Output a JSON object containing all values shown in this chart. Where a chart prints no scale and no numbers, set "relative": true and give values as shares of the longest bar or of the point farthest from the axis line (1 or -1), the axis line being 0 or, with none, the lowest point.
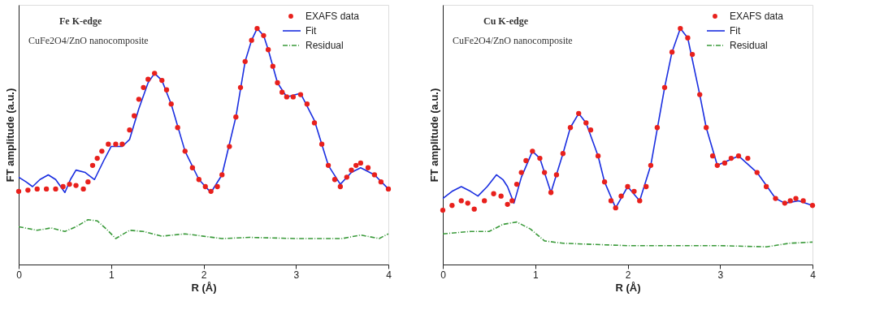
{
  "chart_data": [
    {
      "type": "scatter",
      "relative": true,
      "xlabel": "R (Å)",
      "ylabel": "FT amplitude (a.u.)",
      "xlim": [
        0,
        4
      ],
      "xticks": [
        0,
        1,
        2,
        3,
        4
      ],
      "tick_labels": "x",
      "legend": "top right",
      "grid": false,
      "annotations": [
        "Fe K-edge",
        "CuFe2O4/ZnO nanocomposite"
      ],
      "series": [
        {
          "name": "EXAFS data",
          "type": "scatter",
          "marker": "circle",
          "color": "#e8201c",
          "x": [
            0,
            0.1,
            0.2,
            0.3,
            0.4,
            0.48,
            0.55,
            0.62,
            0.7,
            0.75,
            0.8,
            0.85,
            0.9,
            0.97,
            1.05,
            1.12,
            1.2,
            1.25,
            1.3,
            1.35,
            1.4,
            1.47,
            1.55,
            1.6,
            1.65,
            1.72,
            1.8,
            1.88,
            1.95,
            2.02,
            2.08,
            2.15,
            2.2,
            2.28,
            2.35,
            2.4,
            2.45,
            2.52,
            2.58,
            2.65,
            2.7,
            2.75,
            2.8,
            2.85,
            2.9,
            2.97,
            3.05,
            3.12,
            3.2,
            3.28,
            3.35,
            3.42,
            3.48,
            3.55,
            3.6,
            3.65,
            3.7,
            3.78,
            3.85,
            3.92,
            4.0
          ],
          "values": [
            0.31,
            0.315,
            0.32,
            0.32,
            0.32,
            0.33,
            0.34,
            0.335,
            0.32,
            0.35,
            0.42,
            0.45,
            0.48,
            0.51,
            0.51,
            0.51,
            0.57,
            0.63,
            0.7,
            0.75,
            0.785,
            0.81,
            0.78,
            0.74,
            0.68,
            0.58,
            0.48,
            0.41,
            0.36,
            0.33,
            0.31,
            0.33,
            0.38,
            0.5,
            0.625,
            0.75,
            0.86,
            0.95,
            1.0,
            0.97,
            0.91,
            0.84,
            0.77,
            0.73,
            0.71,
            0.71,
            0.72,
            0.68,
            0.6,
            0.51,
            0.42,
            0.36,
            0.33,
            0.37,
            0.4,
            0.42,
            0.43,
            0.41,
            0.38,
            0.35,
            0.32
          ]
        },
        {
          "name": "Fit",
          "type": "line",
          "line_style": "solid",
          "color": "#1a2ee0",
          "x": [
            0,
            0.08,
            0.15,
            0.23,
            0.32,
            0.4,
            0.5,
            0.56,
            0.62,
            0.72,
            0.82,
            0.92,
            1.0,
            1.12,
            1.2,
            1.3,
            1.4,
            1.47,
            1.55,
            1.65,
            1.8,
            1.95,
            2.08,
            2.2,
            2.35,
            2.45,
            2.52,
            2.58,
            2.65,
            2.7,
            2.8,
            2.9,
            3.05,
            3.2,
            3.35,
            3.48,
            3.6,
            3.7,
            3.85,
            4.0
          ],
          "values": [
            0.37,
            0.35,
            0.33,
            0.36,
            0.38,
            0.36,
            0.305,
            0.36,
            0.4,
            0.39,
            0.36,
            0.44,
            0.5,
            0.5,
            0.53,
            0.66,
            0.77,
            0.81,
            0.78,
            0.68,
            0.48,
            0.36,
            0.305,
            0.38,
            0.625,
            0.86,
            0.95,
            1.0,
            0.97,
            0.91,
            0.77,
            0.71,
            0.725,
            0.61,
            0.42,
            0.34,
            0.39,
            0.41,
            0.38,
            0.32
          ]
        },
        {
          "name": "Residual",
          "type": "line",
          "line_style": "dashed",
          "color": "#3a9a3a",
          "x": [
            0,
            0.2,
            0.35,
            0.5,
            0.62,
            0.75,
            0.85,
            0.95,
            1.05,
            1.2,
            1.35,
            1.55,
            1.8,
            2.0,
            2.2,
            2.5,
            3.0,
            3.5,
            3.7,
            3.9,
            4.0
          ],
          "values": [
            0.16,
            0.145,
            0.155,
            0.14,
            0.16,
            0.19,
            0.185,
            0.15,
            0.11,
            0.145,
            0.14,
            0.12,
            0.13,
            0.12,
            0.11,
            0.115,
            0.11,
            0.11,
            0.125,
            0.11,
            0.13
          ]
        }
      ]
    },
    {
      "type": "scatter",
      "relative": true,
      "xlabel": "R (Å)",
      "ylabel": "FT amplitude (a.u.)",
      "xlim": [
        0,
        4
      ],
      "xticks": [
        0,
        1,
        2,
        3,
        4
      ],
      "tick_labels": "x",
      "legend": "top right",
      "grid": false,
      "annotations": [
        "Cu K-edge",
        "CuFe2O4/ZnO nanocomposite"
      ],
      "series": [
        {
          "name": "EXAFS data",
          "type": "scatter",
          "marker": "circle",
          "color": "#e8201c",
          "x": [
            0,
            0.1,
            0.2,
            0.27,
            0.34,
            0.45,
            0.55,
            0.63,
            0.7,
            0.75,
            0.8,
            0.85,
            0.9,
            0.97,
            1.05,
            1.1,
            1.17,
            1.23,
            1.3,
            1.38,
            1.47,
            1.55,
            1.6,
            1.68,
            1.75,
            1.82,
            1.87,
            1.93,
            2.0,
            2.07,
            2.13,
            2.2,
            2.25,
            2.32,
            2.4,
            2.48,
            2.57,
            2.65,
            2.7,
            2.78,
            2.85,
            2.92,
            2.97,
            3.05,
            3.12,
            3.2,
            3.3,
            3.4,
            3.5,
            3.6,
            3.7,
            3.76,
            3.82,
            3.9,
            4.0
          ],
          "values": [
            0.23,
            0.25,
            0.27,
            0.26,
            0.235,
            0.27,
            0.3,
            0.29,
            0.255,
            0.27,
            0.34,
            0.39,
            0.44,
            0.48,
            0.45,
            0.39,
            0.305,
            0.38,
            0.47,
            0.58,
            0.64,
            0.6,
            0.57,
            0.46,
            0.35,
            0.27,
            0.24,
            0.29,
            0.33,
            0.31,
            0.27,
            0.33,
            0.42,
            0.58,
            0.75,
            0.9,
            1.0,
            0.96,
            0.89,
            0.72,
            0.58,
            0.46,
            0.42,
            0.43,
            0.45,
            0.46,
            0.45,
            0.39,
            0.33,
            0.28,
            0.26,
            0.27,
            0.28,
            0.27,
            0.25
          ]
        },
        {
          "name": "Fit",
          "type": "line",
          "line_style": "solid",
          "color": "#1a2ee0",
          "x": [
            0,
            0.1,
            0.2,
            0.3,
            0.38,
            0.48,
            0.58,
            0.65,
            0.7,
            0.77,
            0.85,
            0.97,
            1.05,
            1.17,
            1.3,
            1.38,
            1.47,
            1.55,
            1.68,
            1.75,
            1.87,
            2.0,
            2.13,
            2.25,
            2.4,
            2.48,
            2.57,
            2.65,
            2.78,
            2.85,
            2.97,
            3.2,
            3.4,
            3.6,
            3.7,
            3.85,
            4.0
          ],
          "values": [
            0.28,
            0.31,
            0.33,
            0.31,
            0.29,
            0.33,
            0.38,
            0.36,
            0.33,
            0.26,
            0.37,
            0.48,
            0.45,
            0.305,
            0.47,
            0.58,
            0.64,
            0.6,
            0.46,
            0.35,
            0.24,
            0.33,
            0.27,
            0.42,
            0.75,
            0.9,
            1.0,
            0.96,
            0.72,
            0.58,
            0.42,
            0.46,
            0.39,
            0.28,
            0.26,
            0.27,
            0.25
          ]
        },
        {
          "name": "Residual",
          "type": "line",
          "line_style": "dashed",
          "color": "#3a9a3a",
          "x": [
            0,
            0.3,
            0.5,
            0.65,
            0.8,
            0.95,
            1.1,
            1.3,
            2.0,
            3.0,
            3.5,
            3.75,
            4.0
          ],
          "values": [
            0.13,
            0.14,
            0.14,
            0.17,
            0.18,
            0.15,
            0.1,
            0.09,
            0.08,
            0.08,
            0.075,
            0.09,
            0.095
          ]
        }
      ]
    }
  ]
}
